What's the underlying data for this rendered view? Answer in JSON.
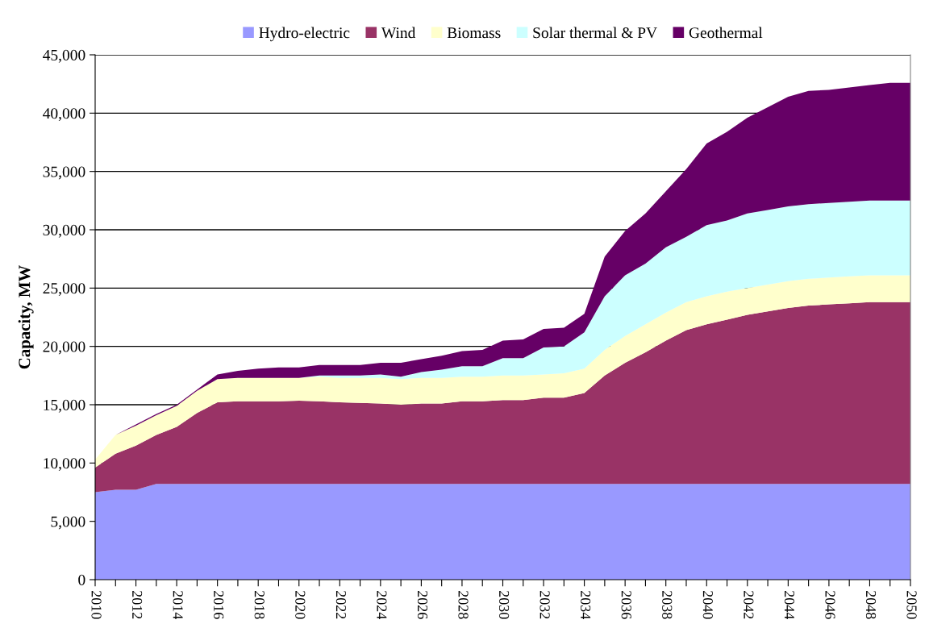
{
  "chart_data": {
    "type": "area",
    "stacked": true,
    "ylabel": "Capacity, MW",
    "legend": "top",
    "grid": "y",
    "x": [
      2010,
      2011,
      2012,
      2013,
      2014,
      2015,
      2016,
      2017,
      2018,
      2019,
      2020,
      2021,
      2022,
      2023,
      2024,
      2025,
      2026,
      2027,
      2028,
      2029,
      2030,
      2031,
      2032,
      2033,
      2034,
      2035,
      2036,
      2037,
      2038,
      2039,
      2040,
      2041,
      2042,
      2043,
      2044,
      2045,
      2046,
      2047,
      2048,
      2049,
      2050
    ],
    "xlim": [
      2010,
      2050
    ],
    "xticks": [
      2010,
      {
        "value": 2011,
        "label": null
      },
      2012,
      {
        "value": 2013,
        "label": null
      },
      2014,
      {
        "value": 2015,
        "label": null
      },
      2016,
      {
        "value": 2017,
        "label": null
      },
      2018,
      {
        "value": 2019,
        "label": null
      },
      2020,
      {
        "value": 2021,
        "label": null
      },
      2022,
      {
        "value": 2023,
        "label": null
      },
      2024,
      {
        "value": 2025,
        "label": null
      },
      2026,
      {
        "value": 2027,
        "label": null
      },
      2028,
      {
        "value": 2029,
        "label": null
      },
      2030,
      {
        "value": 2031,
        "label": null
      },
      2032,
      {
        "value": 2033,
        "label": null
      },
      2034,
      {
        "value": 2035,
        "label": null
      },
      2036,
      {
        "value": 2037,
        "label": null
      },
      2038,
      {
        "value": 2039,
        "label": null
      },
      2040,
      {
        "value": 2041,
        "label": null
      },
      2042,
      {
        "value": 2043,
        "label": null
      },
      2044,
      {
        "value": 2045,
        "label": null
      },
      2046,
      {
        "value": 2047,
        "label": null
      },
      2048,
      {
        "value": 2049,
        "label": null
      },
      2050
    ],
    "ylim": [
      0,
      45000
    ],
    "yticks": [
      0,
      {
        "value": 5000,
        "label": "5,000"
      },
      {
        "value": 10000,
        "label": "10,000"
      },
      {
        "value": 15000,
        "label": "15,000"
      },
      {
        "value": 20000,
        "label": "20,000"
      },
      {
        "value": 25000,
        "label": "25,000"
      },
      {
        "value": 30000,
        "label": "30,000"
      },
      {
        "value": 35000,
        "label": "35,000"
      },
      {
        "value": 40000,
        "label": "40,000"
      },
      {
        "value": 45000,
        "label": "45,000"
      }
    ],
    "series": [
      {
        "name": "Hydro-electric",
        "color": "#9999ff",
        "values": [
          7500,
          7700,
          7700,
          8200,
          8200,
          8200,
          8200,
          8200,
          8200,
          8200,
          8200,
          8200,
          8200,
          8200,
          8200,
          8200,
          8200,
          8200,
          8200,
          8200,
          8200,
          8200,
          8200,
          8200,
          8200,
          8200,
          8200,
          8200,
          8200,
          8200,
          8200,
          8200,
          8200,
          8200,
          8200,
          8200,
          8200,
          8200,
          8200,
          8200,
          8200
        ]
      },
      {
        "name": "Wind",
        "color": "#993366",
        "values": [
          2100,
          3100,
          3800,
          4200,
          4900,
          6100,
          7000,
          7100,
          7100,
          7100,
          7150,
          7100,
          7000,
          6950,
          6900,
          6800,
          6900,
          6900,
          7100,
          7100,
          7200,
          7200,
          7400,
          7400,
          7800,
          9300,
          10400,
          11300,
          12300,
          13200,
          13700,
          14100,
          14500,
          14800,
          15100,
          15300,
          15400,
          15500,
          15600,
          15600,
          15600
        ]
      },
      {
        "name": "Biomass",
        "color": "#ffffcc",
        "values": [
          700,
          1600,
          1700,
          1700,
          1800,
          1900,
          2000,
          2000,
          2000,
          2000,
          1950,
          2100,
          2100,
          2150,
          2200,
          2200,
          2200,
          2200,
          2100,
          2100,
          2100,
          2100,
          2000,
          2100,
          2100,
          2200,
          2300,
          2400,
          2400,
          2400,
          2400,
          2400,
          2300,
          2300,
          2300,
          2300,
          2300,
          2300,
          2300,
          2300,
          2300
        ]
      },
      {
        "name": "Solar thermal & PV",
        "color": "#ccffff",
        "values": [
          0,
          0,
          0,
          0,
          0,
          0,
          0,
          0,
          0,
          0,
          0,
          100,
          200,
          200,
          300,
          200,
          500,
          700,
          900,
          900,
          1500,
          1500,
          2300,
          2300,
          3100,
          4600,
          5200,
          5200,
          5600,
          5600,
          6100,
          6100,
          6400,
          6400,
          6400,
          6400,
          6400,
          6400,
          6400,
          6400,
          6400
        ]
      },
      {
        "name": "Geothermal",
        "color": "#660066",
        "values": [
          0,
          0,
          100,
          100,
          100,
          100,
          400,
          600,
          800,
          900,
          900,
          900,
          900,
          900,
          1000,
          1200,
          1100,
          1200,
          1300,
          1400,
          1500,
          1600,
          1600,
          1600,
          1600,
          3400,
          3800,
          4300,
          4800,
          5800,
          7000,
          7600,
          8200,
          8800,
          9400,
          9700,
          9700,
          9800,
          9900,
          10100,
          10100
        ]
      }
    ]
  }
}
